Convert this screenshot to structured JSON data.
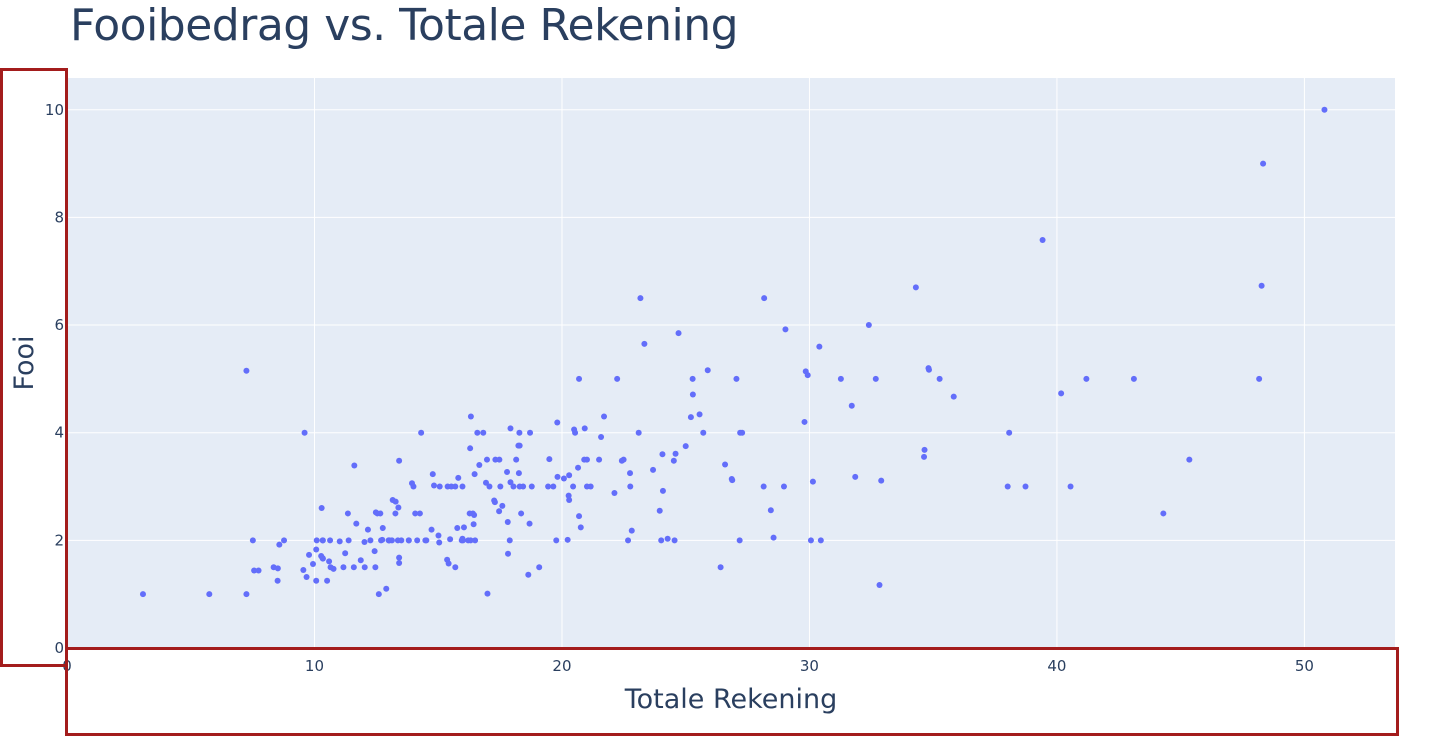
{
  "title": "Fooibedrag vs. Totale Rekening",
  "colors": {
    "marker": "#636efa",
    "plot_bg": "#e5ecf6",
    "grid": "#ffffff",
    "text": "#2a3f5f",
    "highlight": "#a31c1c"
  },
  "x_axis": {
    "title": "Totale Rekening",
    "ticks": [
      "0",
      "10",
      "20",
      "30",
      "40",
      "50"
    ]
  },
  "y_axis": {
    "title": "Fooi",
    "ticks": [
      "0",
      "2",
      "4",
      "6",
      "8",
      "10"
    ]
  },
  "chart_data": {
    "type": "scatter",
    "title": "Fooibedrag vs. Totale Rekening",
    "xlabel": "Totale Rekening",
    "ylabel": "Fooi",
    "xlim": [
      0,
      53.66
    ],
    "ylim": [
      0,
      10.59
    ],
    "grid": true,
    "legend": "none",
    "series": [
      {
        "name": "tips",
        "x": [
          16.99,
          10.34,
          21.01,
          23.68,
          24.59,
          25.29,
          8.77,
          26.88,
          15.04,
          14.78,
          10.27,
          35.26,
          15.42,
          18.43,
          14.83,
          21.58,
          10.33,
          16.29,
          16.97,
          20.65,
          17.92,
          20.29,
          15.77,
          39.42,
          19.82,
          17.81,
          13.37,
          12.69,
          21.7,
          19.65,
          9.55,
          18.35,
          15.06,
          20.69,
          17.78,
          24.06,
          16.31,
          16.93,
          18.69,
          31.27,
          16.04,
          17.46,
          13.94,
          9.68,
          30.4,
          18.29,
          22.23,
          32.4,
          28.55,
          18.04,
          12.54,
          10.29,
          34.81,
          9.94,
          25.56,
          19.49,
          38.01,
          26.41,
          11.24,
          48.27,
          20.29,
          13.81,
          11.02,
          18.29,
          17.59,
          20.08,
          16.45,
          3.07,
          20.23,
          15.01,
          12.02,
          17.07,
          26.86,
          25.28,
          14.73,
          10.51,
          17.92,
          27.2,
          22.76,
          17.29,
          19.44,
          16.66,
          10.07,
          32.68,
          15.98,
          34.83,
          13.03,
          18.28,
          24.71,
          21.16,
          28.97,
          22.49,
          5.75,
          16.32,
          22.75,
          40.17,
          27.28,
          12.03,
          21.01,
          12.46,
          11.35,
          15.38,
          44.3,
          22.42,
          20.92,
          15.36,
          20.49,
          25.21,
          18.24,
          14.31,
          14.0,
          7.25,
          38.07,
          23.95,
          25.71,
          17.31,
          29.93,
          10.65,
          12.43,
          24.08,
          11.69,
          13.42,
          14.26,
          15.95,
          12.48,
          29.8,
          8.52,
          14.52,
          11.38,
          22.82,
          19.08,
          20.27,
          11.17,
          12.26,
          18.26,
          8.51,
          10.33,
          14.15,
          16.0,
          13.16,
          17.47,
          34.3,
          41.19,
          27.05,
          16.43,
          8.35,
          18.64,
          11.87,
          9.78,
          7.51,
          14.07,
          13.13,
          17.26,
          24.55,
          19.77,
          29.85,
          48.17,
          25.0,
          13.39,
          16.49,
          21.5,
          12.66,
          16.21,
          13.81,
          17.51,
          24.52,
          20.76,
          31.71,
          10.59,
          10.63,
          50.81,
          15.81,
          7.25,
          31.85,
          16.82,
          32.9,
          17.89,
          14.48,
          9.6,
          34.63,
          34.65,
          23.33,
          45.35,
          23.17,
          40.55,
          20.69,
          20.9,
          30.46,
          18.15,
          23.1,
          15.69,
          19.81,
          28.44,
          15.48,
          16.58,
          7.56,
          10.34,
          43.11,
          13.0,
          13.51,
          18.71,
          12.74,
          13.0,
          16.4,
          20.53,
          16.47,
          26.59,
          38.73,
          24.27,
          12.76,
          30.06,
          25.89,
          48.33,
          13.27,
          28.17,
          12.9,
          28.15,
          11.59,
          7.74,
          30.14,
          12.16,
          13.42,
          8.58,
          15.98,
          13.42,
          16.27,
          10.09,
          20.45,
          13.28,
          22.12,
          24.01,
          15.69,
          11.61,
          10.77,
          15.53,
          10.07,
          12.6,
          32.83,
          35.83,
          29.03,
          27.18,
          22.67,
          17.82,
          18.78
        ],
        "y": [
          1.01,
          1.66,
          3.5,
          3.31,
          3.61,
          4.71,
          2.0,
          3.12,
          1.96,
          3.23,
          1.71,
          5.0,
          1.57,
          3.0,
          3.02,
          3.92,
          1.67,
          3.71,
          3.5,
          3.35,
          4.08,
          2.75,
          2.23,
          7.58,
          3.18,
          2.34,
          2.0,
          2.0,
          4.3,
          3.0,
          1.45,
          2.5,
          3.0,
          2.45,
          3.27,
          3.6,
          2.0,
          3.07,
          2.31,
          5.0,
          2.24,
          2.54,
          3.06,
          1.32,
          5.6,
          3.0,
          5.0,
          6.0,
          2.05,
          3.0,
          2.5,
          2.6,
          5.2,
          1.56,
          4.34,
          3.51,
          3.0,
          1.5,
          1.76,
          6.73,
          3.21,
          2.0,
          1.98,
          3.76,
          2.64,
          3.15,
          2.47,
          1.0,
          2.01,
          2.09,
          1.97,
          3.0,
          3.14,
          5.0,
          2.2,
          1.25,
          3.08,
          4.0,
          3.0,
          2.71,
          3.0,
          3.4,
          1.83,
          5.0,
          2.03,
          5.17,
          2.0,
          4.0,
          5.85,
          3.0,
          3.0,
          3.5,
          1.0,
          4.3,
          3.25,
          4.73,
          4.0,
          1.5,
          3.0,
          1.5,
          2.5,
          3.0,
          2.5,
          3.48,
          4.08,
          1.64,
          4.06,
          4.29,
          3.76,
          4.0,
          3.0,
          1.0,
          4.0,
          2.55,
          4.0,
          3.5,
          5.07,
          1.5,
          1.8,
          2.92,
          2.31,
          1.68,
          2.5,
          2.0,
          2.52,
          4.2,
          1.48,
          2.0,
          2.0,
          2.18,
          1.5,
          2.83,
          1.5,
          2.0,
          3.25,
          1.25,
          2.0,
          2.0,
          2.0,
          2.75,
          3.5,
          6.7,
          5.0,
          5.0,
          2.3,
          1.5,
          1.36,
          1.63,
          1.73,
          2.0,
          2.5,
          2.0,
          2.74,
          2.0,
          2.0,
          5.14,
          5.0,
          3.75,
          2.61,
          2.0,
          3.5,
          2.5,
          2.0,
          2.0,
          3.0,
          3.48,
          2.24,
          4.5,
          1.61,
          2.0,
          10.0,
          3.16,
          5.15,
          3.18,
          4.0,
          3.11,
          2.0,
          2.0,
          4.0,
          3.55,
          3.68,
          5.65,
          3.5,
          6.5,
          3.0,
          5.0,
          3.5,
          2.0,
          3.5,
          4.0,
          1.5,
          4.19,
          2.56,
          2.02,
          4.0,
          1.44,
          2.0,
          5.0,
          2.0,
          2.0,
          4.0,
          2.01,
          2.0,
          2.5,
          4.0,
          3.23,
          3.41,
          3.0,
          2.03,
          2.23,
          2.0,
          5.16,
          9.0,
          2.5,
          6.5,
          1.1,
          3.0,
          1.5,
          1.44,
          3.09,
          2.2,
          3.48,
          1.92,
          3.0,
          1.58,
          2.5,
          2.0,
          3.0,
          2.72,
          2.88,
          2.0,
          3.0,
          3.39,
          1.47,
          3.0,
          1.25,
          1.0,
          1.17,
          4.67,
          5.92,
          2.0,
          2.0,
          1.75,
          3.0
        ]
      }
    ]
  }
}
